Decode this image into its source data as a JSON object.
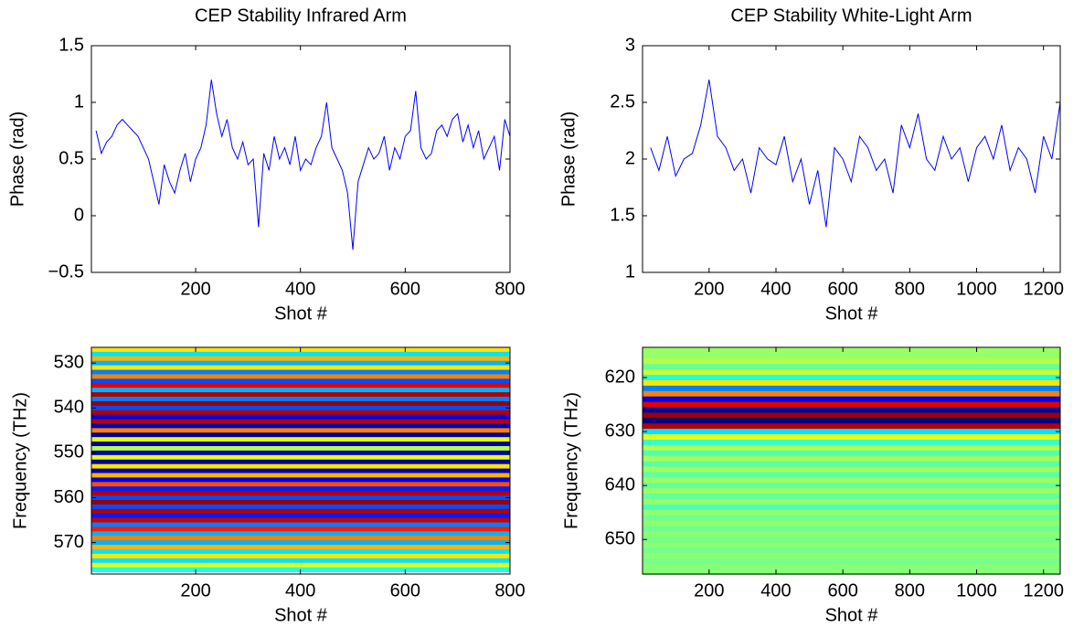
{
  "chart_data": [
    {
      "type": "line",
      "title": "CEP Stability Infrared Arm",
      "xlabel": "Shot #",
      "ylabel": "Phase (rad)",
      "color": "#0000ff",
      "x": [
        10,
        20,
        30,
        40,
        50,
        60,
        70,
        80,
        90,
        100,
        110,
        120,
        130,
        140,
        150,
        160,
        170,
        180,
        190,
        200,
        210,
        220,
        230,
        240,
        250,
        260,
        270,
        280,
        290,
        300,
        310,
        320,
        330,
        340,
        350,
        360,
        370,
        380,
        390,
        400,
        410,
        420,
        430,
        440,
        450,
        460,
        470,
        480,
        490,
        500,
        510,
        520,
        530,
        540,
        550,
        560,
        570,
        580,
        590,
        600,
        610,
        620,
        630,
        640,
        650,
        660,
        670,
        680,
        690,
        700,
        710,
        720,
        730,
        740,
        750,
        760,
        770,
        780,
        790,
        800
      ],
      "values": [
        0.75,
        0.55,
        0.65,
        0.7,
        0.8,
        0.85,
        0.8,
        0.75,
        0.7,
        0.6,
        0.5,
        0.3,
        0.1,
        0.45,
        0.3,
        0.2,
        0.4,
        0.55,
        0.3,
        0.5,
        0.6,
        0.8,
        1.2,
        0.9,
        0.7,
        0.85,
        0.6,
        0.5,
        0.65,
        0.45,
        0.5,
        -0.1,
        0.55,
        0.4,
        0.7,
        0.5,
        0.6,
        0.45,
        0.7,
        0.4,
        0.5,
        0.45,
        0.6,
        0.7,
        1.0,
        0.6,
        0.5,
        0.4,
        0.2,
        -0.3,
        0.3,
        0.45,
        0.6,
        0.5,
        0.55,
        0.7,
        0.4,
        0.6,
        0.5,
        0.7,
        0.75,
        1.1,
        0.6,
        0.5,
        0.55,
        0.75,
        0.8,
        0.7,
        0.85,
        0.9,
        0.65,
        0.8,
        0.6,
        0.75,
        0.5,
        0.6,
        0.7,
        0.4,
        0.85,
        0.7
      ],
      "xlim": [
        1,
        800
      ],
      "xticks": [
        200,
        400,
        600,
        800
      ],
      "ylim": [
        -0.5,
        1.5
      ],
      "yticks": [
        {
          "value": -0.5,
          "label": "−0.5"
        },
        0,
        0.5,
        1,
        1.5
      ]
    },
    {
      "type": "line",
      "title": "CEP Stability White-Light Arm",
      "xlabel": "Shot #",
      "ylabel": "Phase (rad)",
      "color": "#0000ff",
      "x": [
        25,
        50,
        75,
        100,
        125,
        150,
        175,
        200,
        225,
        250,
        275,
        300,
        325,
        350,
        375,
        400,
        425,
        450,
        475,
        500,
        525,
        550,
        575,
        600,
        625,
        650,
        675,
        700,
        725,
        750,
        775,
        800,
        825,
        850,
        875,
        900,
        925,
        950,
        975,
        1000,
        1025,
        1050,
        1075,
        1100,
        1125,
        1150,
        1175,
        1200,
        1225,
        1250
      ],
      "values": [
        2.1,
        1.9,
        2.2,
        1.85,
        2.0,
        2.05,
        2.3,
        2.7,
        2.2,
        2.1,
        1.9,
        2.0,
        1.7,
        2.1,
        2.0,
        1.95,
        2.2,
        1.8,
        2.0,
        1.6,
        1.9,
        1.4,
        2.1,
        2.0,
        1.8,
        2.2,
        2.1,
        1.9,
        2.0,
        1.7,
        2.3,
        2.1,
        2.4,
        2.0,
        1.9,
        2.2,
        2.0,
        2.1,
        1.8,
        2.1,
        2.2,
        2.0,
        2.3,
        1.9,
        2.1,
        2.0,
        1.7,
        2.2,
        2.0,
        2.5
      ],
      "xlim": [
        1,
        1250
      ],
      "xticks": [
        200,
        400,
        600,
        800,
        1000,
        1200
      ],
      "ylim": [
        1,
        3
      ],
      "yticks": [
        1,
        1.5,
        2,
        2.5,
        3
      ]
    },
    {
      "type": "heatmap",
      "xlabel": "Shot #",
      "ylabel": "Frequency (THz)",
      "colormap": "jet",
      "clim": [
        -1,
        1
      ],
      "y": [
        527,
        528,
        529,
        530,
        531,
        532,
        533,
        534,
        535,
        536,
        537,
        538,
        539,
        540,
        541,
        542,
        543,
        544,
        545,
        546,
        547,
        548,
        549,
        550,
        551,
        552,
        553,
        554,
        555,
        556,
        557,
        558,
        559,
        560,
        561,
        562,
        563,
        564,
        565,
        566,
        567,
        568,
        569,
        570,
        571,
        572,
        573,
        574,
        575,
        576
      ],
      "values": [
        0.3,
        -0.3,
        0.4,
        -0.4,
        0.3,
        -0.5,
        0.5,
        -0.6,
        0.8,
        -0.4,
        0.9,
        -0.5,
        0.95,
        -0.6,
        0.9,
        -0.8,
        0.9,
        -0.9,
        0.5,
        -0.95,
        0.2,
        -0.95,
        0.1,
        -0.9,
        0.2,
        -0.95,
        0.3,
        -0.9,
        0.4,
        -0.8,
        0.6,
        -0.7,
        0.9,
        -0.6,
        0.95,
        -0.6,
        0.9,
        -0.7,
        0.85,
        -0.5,
        0.7,
        -0.4,
        0.5,
        -0.4,
        0.4,
        -0.3,
        0.3,
        -0.3,
        0.2,
        -0.2
      ],
      "xlim": [
        1,
        800
      ],
      "xticks": [
        200,
        400,
        600,
        800
      ],
      "ylim": [
        526.5,
        577
      ],
      "yreverse": true,
      "yticks": [
        530,
        540,
        550,
        560,
        570
      ]
    },
    {
      "type": "heatmap",
      "xlabel": "Shot #",
      "ylabel": "Frequency (THz)",
      "colormap": "jet",
      "clim": [
        -1,
        1
      ],
      "y": [
        615,
        616,
        617,
        618,
        619,
        620,
        621,
        622,
        623,
        624,
        625,
        626,
        627,
        628,
        629,
        630,
        631,
        632,
        633,
        634,
        635,
        636,
        637,
        638,
        639,
        640,
        641,
        642,
        643,
        644,
        645,
        646,
        647,
        648,
        649,
        650,
        651,
        652,
        653,
        654,
        655,
        656
      ],
      "values": [
        0.05,
        0.05,
        0.1,
        -0.05,
        0.15,
        -0.2,
        0.3,
        -0.5,
        0.5,
        -0.8,
        0.8,
        -0.95,
        0.95,
        -1,
        0.9,
        -0.3,
        0.2,
        -0.15,
        0.1,
        -0.1,
        0.08,
        -0.08,
        0.06,
        -0.06,
        0.05,
        -0.05,
        0.05,
        -0.05,
        0.04,
        -0.1,
        0.03,
        -0.03,
        0.03,
        -0.03,
        0.02,
        -0.02,
        0.02,
        -0.02,
        0.02,
        -0.02,
        0.01,
        0.01
      ],
      "xlim": [
        1,
        1250
      ],
      "xticks": [
        200,
        400,
        600,
        800,
        1000,
        1200
      ],
      "ylim": [
        614.4,
        656.4
      ],
      "yreverse": true,
      "yticks": [
        620,
        630,
        640,
        650
      ]
    }
  ]
}
